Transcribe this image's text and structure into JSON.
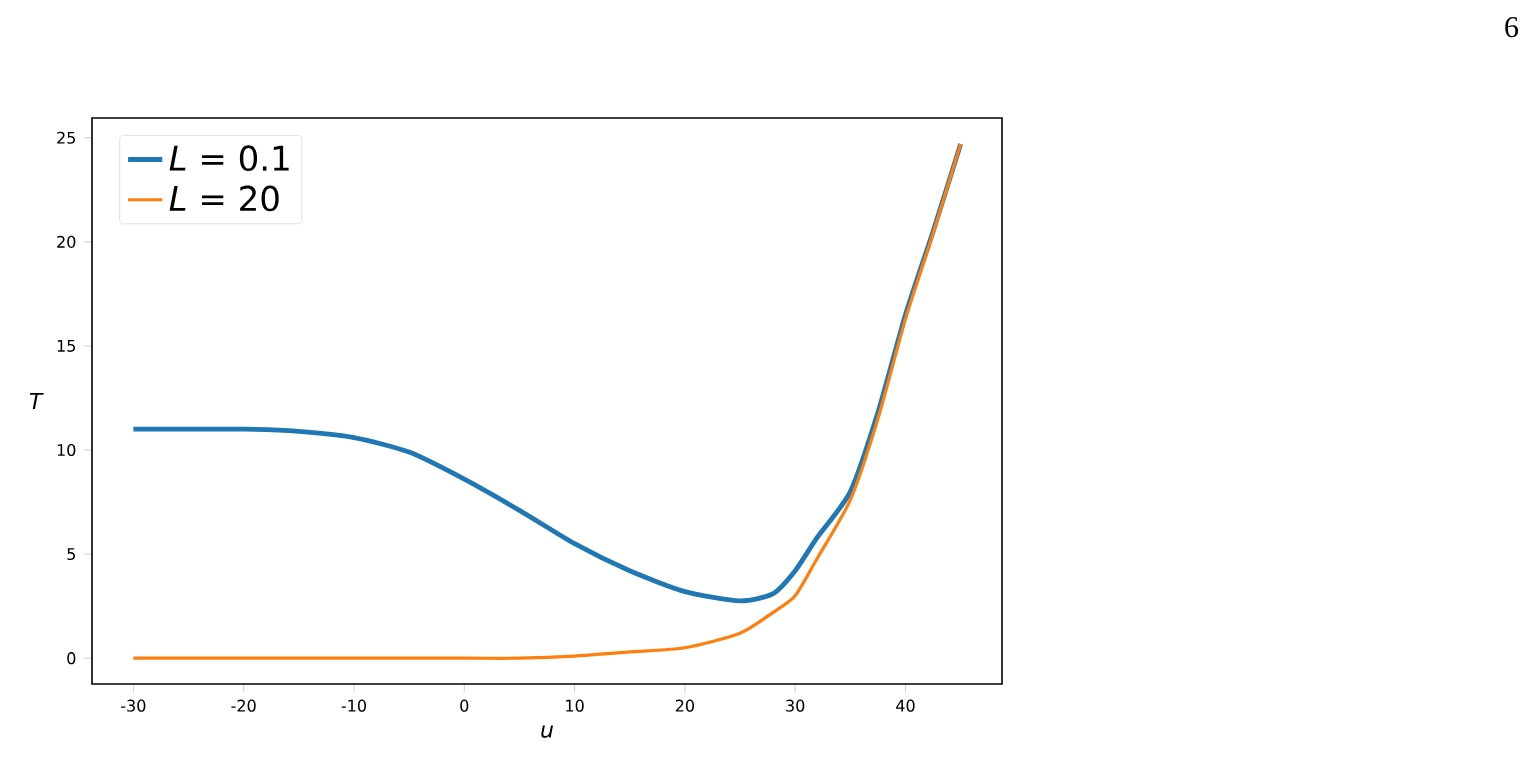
{
  "chart_data": {
    "type": "line",
    "xlabel": "u",
    "ylabel": "T",
    "annotations": [
      "6"
    ],
    "xlim": [
      -33.75,
      48.75
    ],
    "ylim": [
      -1.24,
      25.95
    ],
    "xticks": [
      -30,
      -20,
      -10,
      0,
      10,
      20,
      30,
      40
    ],
    "yticks": [
      0,
      5,
      10,
      15,
      20,
      25
    ],
    "legend": "top left",
    "grid": false,
    "line_style": "solid",
    "marker": "none",
    "series": [
      {
        "name": "*L* = 0.1",
        "color": "#1f77b4",
        "x": [
          -30,
          -20,
          -15,
          -10,
          -5,
          0,
          5,
          10,
          15,
          20,
          25,
          28,
          30,
          32,
          35,
          37.5,
          40,
          42.5,
          45
        ],
        "values": [
          11.0,
          11.0,
          10.9,
          10.6,
          9.9,
          8.6,
          7.1,
          5.5,
          4.2,
          3.2,
          2.75,
          3.1,
          4.2,
          5.8,
          8.0,
          11.8,
          16.5,
          20.5,
          24.7
        ]
      },
      {
        "name": "*L* = 20",
        "color": "#ff7f0e",
        "x": [
          -30,
          -20,
          -10,
          0,
          5,
          10,
          15,
          20,
          25,
          28,
          30,
          32,
          35,
          37.5,
          40,
          42.5,
          45
        ],
        "values": [
          0,
          0,
          0,
          0,
          0,
          0.1,
          0.3,
          0.5,
          1.2,
          2.2,
          3.0,
          4.8,
          7.6,
          11.5,
          16.3,
          20.4,
          24.7
        ]
      }
    ]
  }
}
